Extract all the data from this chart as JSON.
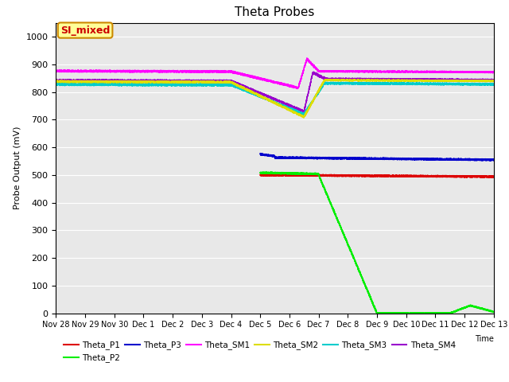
{
  "title": "Theta Probes",
  "xlabel": "Time",
  "ylabel": "Probe Output (mV)",
  "annotation_text": "SI_mixed",
  "annotation_color": "#cc0000",
  "annotation_bg": "#ffff99",
  "annotation_border": "#cc8800",
  "ylim": [
    0,
    1050
  ],
  "yticks": [
    0,
    100,
    200,
    300,
    400,
    500,
    600,
    700,
    800,
    900,
    1000
  ],
  "background_color": "#e8e8e8",
  "series_colors": {
    "Theta_P1": "#dd0000",
    "Theta_P2": "#00ee00",
    "Theta_P3": "#0000cc",
    "Theta_SM1": "#ff00ff",
    "Theta_SM2": "#dddd00",
    "Theta_SM3": "#00cccc",
    "Theta_SM4": "#9900cc"
  },
  "xtick_labels": [
    "Nov 28",
    "Nov 29",
    "Nov 30",
    "Dec 1",
    "Dec 2",
    "Dec 3",
    "Dec 4",
    "Dec 5",
    "Dec 6",
    "Dec 7",
    "Dec 8",
    "Dec 9",
    "Dec 10",
    "Dec 11",
    "Dec 12",
    "Dec 13"
  ]
}
